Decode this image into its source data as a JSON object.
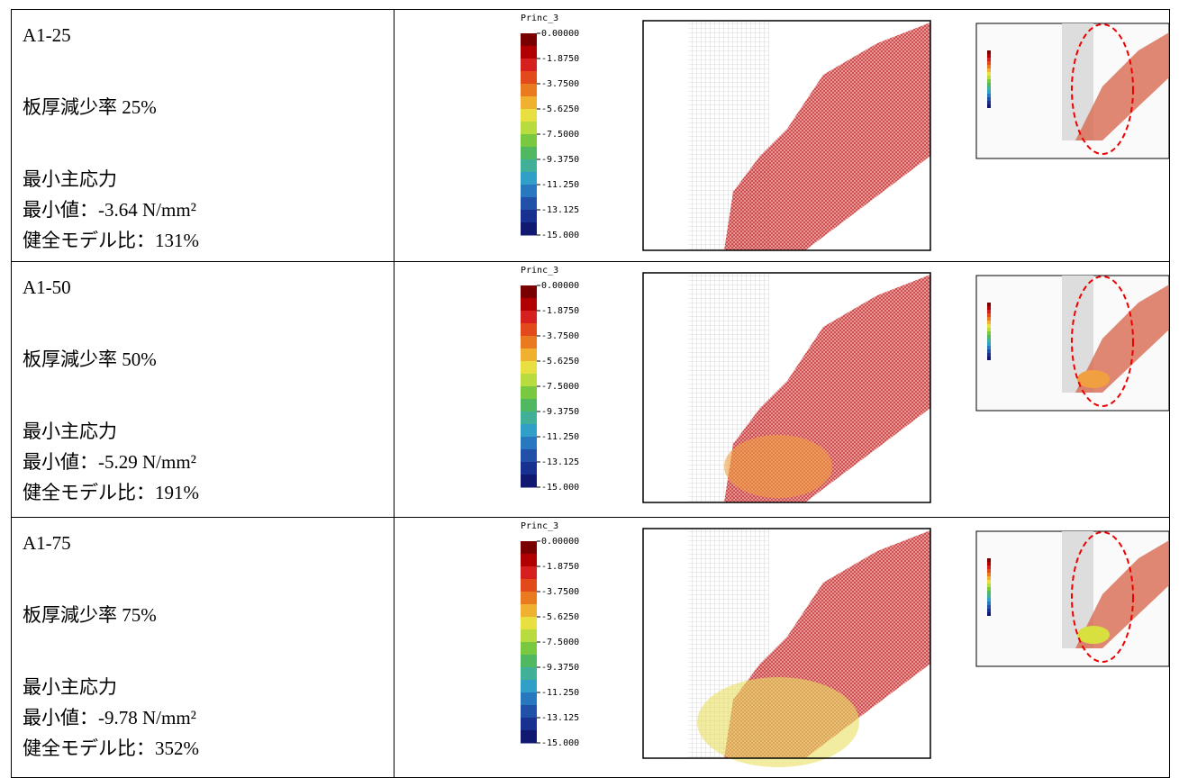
{
  "legend": {
    "title": "Princ_3",
    "labels": [
      "0.00000",
      "-1.8750",
      "-3.7500",
      "-5.6250",
      "-7.5000",
      "-9.3750",
      "-11.250",
      "-13.125",
      "-15.000"
    ]
  },
  "table": {
    "rows": [
      [
        "A1-25",
        "板厚減少率 25%",
        "最小主応力",
        "最小値：-3.64 N/mm²",
        "健全モデル比：131%"
      ],
      [
        "A1-50",
        "板厚減少率 50%",
        "最小主応力",
        "最小値：-5.29 N/mm²",
        "健全モデル比：191%"
      ],
      [
        "A1-75",
        "板厚減少率 75%",
        "最小主応力",
        "最小値：-9.78 N/mm²",
        "健全モデル比：352%"
      ]
    ]
  }
}
